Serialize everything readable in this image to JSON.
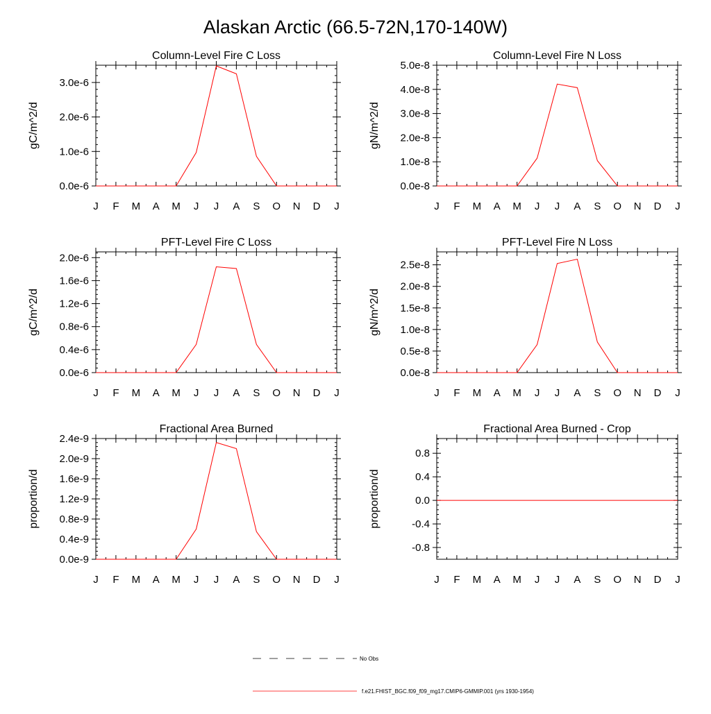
{
  "figure": {
    "title": "Alaskan Arctic (66.5-72N,170-140W)"
  },
  "legend": {
    "items": [
      {
        "label": "No Obs",
        "color": "#000000",
        "style": "dashed"
      },
      {
        "label": "f.e21.FHIST_BGC.f09_f09_mg17.CMIP6-GMMIP.001 (yrs 1930-1954)",
        "color": "#ff0000",
        "style": "solid"
      }
    ]
  },
  "chart_data": [
    {
      "type": "line",
      "title": "Column-Level Fire C Loss",
      "ylabel": "gC/m^2/d",
      "categories": [
        "J",
        "F",
        "M",
        "A",
        "M",
        "J",
        "J",
        "A",
        "S",
        "O",
        "N",
        "D",
        "J"
      ],
      "ylim": [
        0,
        3.5e-06
      ],
      "yticks": [
        0,
        1e-06,
        2e-06,
        3e-06
      ],
      "ytick_labels": [
        "0.0e-6",
        "1.0e-6",
        "2.0e-6",
        "3.0e-6"
      ],
      "series": [
        {
          "color": "#ff0000",
          "values": [
            0,
            0,
            0,
            0,
            0,
            9.7e-07,
            3.48e-06,
            3.25e-06,
            8.6e-07,
            0,
            0,
            0,
            0
          ]
        }
      ]
    },
    {
      "type": "line",
      "title": "Column-Level Fire N Loss",
      "ylabel": "gN/m^2/d",
      "categories": [
        "J",
        "F",
        "M",
        "A",
        "M",
        "J",
        "J",
        "A",
        "S",
        "O",
        "N",
        "D",
        "J"
      ],
      "ylim": [
        0,
        5e-08
      ],
      "yticks": [
        0,
        1e-08,
        2e-08,
        3e-08,
        4e-08,
        5e-08
      ],
      "ytick_labels": [
        "0.0e-8",
        "1.0e-8",
        "2.0e-8",
        "3.0e-8",
        "4.0e-8",
        "5.0e-8"
      ],
      "series": [
        {
          "color": "#ff0000",
          "values": [
            0,
            0,
            0,
            0,
            0,
            1.15e-08,
            4.22e-08,
            4.07e-08,
            1.05e-08,
            0,
            0,
            0,
            0
          ]
        }
      ]
    },
    {
      "type": "line",
      "title": "PFT-Level Fire C Loss",
      "ylabel": "gC/m^2/d",
      "categories": [
        "J",
        "F",
        "M",
        "A",
        "M",
        "J",
        "J",
        "A",
        "S",
        "O",
        "N",
        "D",
        "J"
      ],
      "ylim": [
        0,
        2.1e-06
      ],
      "yticks": [
        0,
        4e-07,
        8e-07,
        1.2e-06,
        1.6e-06,
        2e-06
      ],
      "ytick_labels": [
        "0.0e-6",
        "0.4e-6",
        "0.8e-6",
        "1.2e-6",
        "1.6e-6",
        "2.0e-6"
      ],
      "series": [
        {
          "color": "#ff0000",
          "values": [
            0,
            0,
            0,
            0,
            0,
            4.9e-07,
            1.84e-06,
            1.81e-06,
            4.9e-07,
            0,
            0,
            0,
            0
          ]
        }
      ]
    },
    {
      "type": "line",
      "title": "PFT-Level Fire N Loss",
      "ylabel": "gN/m^2/d",
      "categories": [
        "J",
        "F",
        "M",
        "A",
        "M",
        "J",
        "J",
        "A",
        "S",
        "O",
        "N",
        "D",
        "J"
      ],
      "ylim": [
        0,
        2.8e-08
      ],
      "yticks": [
        0,
        5e-09,
        1e-08,
        1.5e-08,
        2e-08,
        2.5e-08
      ],
      "ytick_labels": [
        "0.0e-8",
        "0.5e-8",
        "1.0e-8",
        "1.5e-8",
        "2.0e-8",
        "2.5e-8"
      ],
      "series": [
        {
          "color": "#ff0000",
          "values": [
            0,
            0,
            0,
            0,
            0,
            6.5e-09,
            2.53e-08,
            2.63e-08,
            7.1e-09,
            0,
            0,
            0,
            0
          ]
        }
      ]
    },
    {
      "type": "line",
      "title": "Fractional Area Burned",
      "ylabel": "proportion/d",
      "categories": [
        "J",
        "F",
        "M",
        "A",
        "M",
        "J",
        "J",
        "A",
        "S",
        "O",
        "N",
        "D",
        "J"
      ],
      "ylim": [
        0,
        2.4e-09
      ],
      "yticks": [
        0,
        4e-10,
        8e-10,
        1.2e-09,
        1.6e-09,
        2e-09,
        2.4e-09
      ],
      "ytick_labels": [
        "0.0e-9",
        "0.4e-9",
        "0.8e-9",
        "1.2e-9",
        "1.6e-9",
        "2.0e-9",
        "2.4e-9"
      ],
      "series": [
        {
          "color": "#ff0000",
          "values": [
            0,
            0,
            0,
            0,
            0,
            6e-10,
            2.32e-09,
            2.2e-09,
            5.5e-10,
            0,
            0,
            0,
            0
          ]
        }
      ]
    },
    {
      "type": "line",
      "title": "Fractional Area Burned - Crop",
      "ylabel": "proportion/d",
      "categories": [
        "J",
        "F",
        "M",
        "A",
        "M",
        "J",
        "J",
        "A",
        "S",
        "O",
        "N",
        "D",
        "J"
      ],
      "ylim": [
        -1.0,
        1.05
      ],
      "yticks": [
        -0.8,
        -0.4,
        0,
        0.4,
        0.8
      ],
      "ytick_labels": [
        "-0.8",
        "-0.4",
        "0.0",
        "0.4",
        "0.8"
      ],
      "series": [
        {
          "color": "#ff0000",
          "values": [
            0,
            0,
            0,
            0,
            0,
            0,
            0,
            0,
            0,
            0,
            0,
            0,
            0
          ]
        }
      ]
    }
  ]
}
